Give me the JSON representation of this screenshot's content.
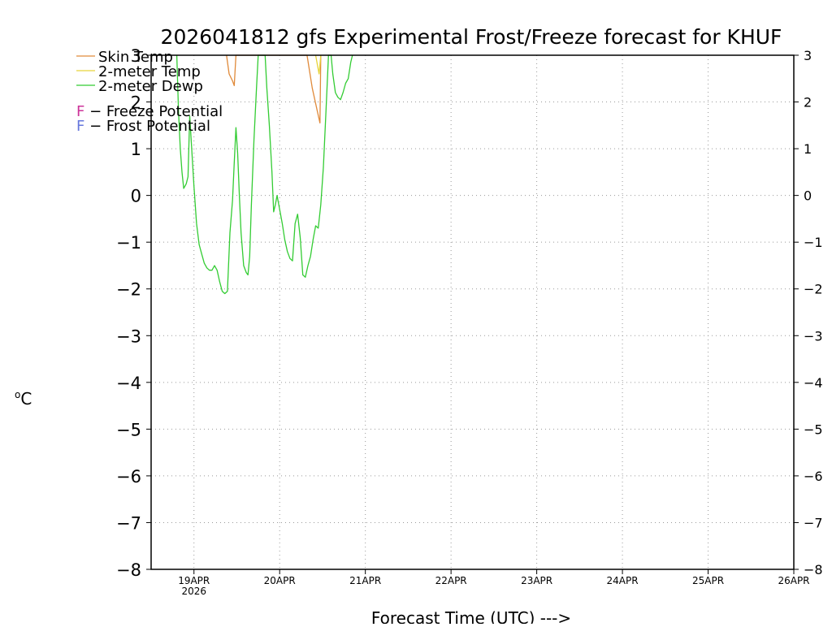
{
  "chart_data": {
    "type": "line",
    "title": "2026041812 gfs Experimental Frost/Freeze forecast for KHUF",
    "xlabel": "Forecast Time (UTC) --->",
    "ylabel": "°C",
    "ylabel_main": "o",
    "ylabel_unit": "C",
    "ylim": [
      -8,
      3
    ],
    "xlim": [
      18.5,
      26.0
    ],
    "y_ticks": [
      3,
      2,
      1,
      0,
      -1,
      -2,
      -3,
      -4,
      -5,
      -6,
      -7,
      -8
    ],
    "y_tick_labels": [
      "3",
      "2",
      "1",
      "0",
      "−1",
      "−2",
      "−3",
      "−4",
      "−5",
      "−6",
      "−7",
      "−8"
    ],
    "x_ticks": [
      {
        "value": 19.0,
        "label": "19APR",
        "sublabel": "2026"
      },
      {
        "value": 20.0,
        "label": "20APR",
        "sublabel": ""
      },
      {
        "value": 21.0,
        "label": "21APR",
        "sublabel": ""
      },
      {
        "value": 22.0,
        "label": "22APR",
        "sublabel": ""
      },
      {
        "value": 23.0,
        "label": "23APR",
        "sublabel": ""
      },
      {
        "value": 24.0,
        "label": "24APR",
        "sublabel": ""
      },
      {
        "value": 25.0,
        "label": "25APR",
        "sublabel": ""
      },
      {
        "value": 26.0,
        "label": "26APR",
        "sublabel": ""
      }
    ],
    "grid": true,
    "legend_position": "top-left",
    "legend": [
      {
        "name": "Skin Temp",
        "color": "#e08a3a"
      },
      {
        "name": "2-meter Temp",
        "color": "#e6d43a"
      },
      {
        "name": "2-meter Dewp",
        "color": "#33cc33"
      }
    ],
    "annotations": [
      {
        "letter": "F",
        "text": " − Freeze Potential",
        "color": "#cc3399"
      },
      {
        "letter": "F",
        "text": " − Frost Potential",
        "color": "#6677dd"
      }
    ],
    "series": [
      {
        "name": "Skin Temp",
        "color": "#e08a3a",
        "points": [
          [
            19.38,
            3.0
          ],
          [
            19.41,
            2.6
          ],
          [
            19.45,
            2.45
          ],
          [
            19.47,
            2.35
          ],
          [
            19.49,
            3.0
          ],
          [
            20.32,
            3.0
          ],
          [
            20.38,
            2.3
          ],
          [
            20.44,
            1.8
          ],
          [
            20.47,
            1.55
          ],
          [
            20.48,
            3.0
          ]
        ]
      },
      {
        "name": "2-meter Temp",
        "color": "#e6d43a",
        "points": [
          [
            20.42,
            3.0
          ],
          [
            20.46,
            2.6
          ],
          [
            20.48,
            3.0
          ]
        ]
      },
      {
        "name": "2-meter Dewp",
        "color": "#33cc33",
        "points": [
          [
            18.8,
            3.0
          ],
          [
            18.82,
            1.8
          ],
          [
            18.84,
            1.0
          ],
          [
            18.86,
            0.5
          ],
          [
            18.88,
            0.15
          ],
          [
            18.91,
            0.25
          ],
          [
            18.93,
            0.4
          ],
          [
            18.95,
            1.7
          ],
          [
            18.97,
            1.1
          ],
          [
            19.0,
            0.2
          ],
          [
            19.03,
            -0.6
          ],
          [
            19.06,
            -1.05
          ],
          [
            19.09,
            -1.25
          ],
          [
            19.12,
            -1.45
          ],
          [
            19.15,
            -1.55
          ],
          [
            19.18,
            -1.6
          ],
          [
            19.21,
            -1.6
          ],
          [
            19.24,
            -1.5
          ],
          [
            19.27,
            -1.6
          ],
          [
            19.3,
            -1.85
          ],
          [
            19.33,
            -2.05
          ],
          [
            19.36,
            -2.1
          ],
          [
            19.39,
            -2.05
          ],
          [
            19.42,
            -0.8
          ],
          [
            19.45,
            -0.1
          ],
          [
            19.47,
            0.7
          ],
          [
            19.49,
            1.45
          ],
          [
            19.51,
            0.9
          ],
          [
            19.53,
            0.0
          ],
          [
            19.55,
            -0.8
          ],
          [
            19.58,
            -1.5
          ],
          [
            19.61,
            -1.65
          ],
          [
            19.63,
            -1.7
          ],
          [
            19.65,
            -1.3
          ],
          [
            19.67,
            -0.2
          ],
          [
            19.7,
            1.2
          ],
          [
            19.73,
            2.3
          ],
          [
            19.75,
            3.0
          ],
          [
            19.83,
            3.0
          ],
          [
            19.85,
            2.3
          ],
          [
            19.88,
            1.5
          ],
          [
            19.91,
            0.5
          ],
          [
            19.93,
            -0.35
          ],
          [
            19.95,
            -0.2
          ],
          [
            19.97,
            0.0
          ],
          [
            20.0,
            -0.3
          ],
          [
            20.03,
            -0.6
          ],
          [
            20.06,
            -0.95
          ],
          [
            20.09,
            -1.2
          ],
          [
            20.12,
            -1.35
          ],
          [
            20.15,
            -1.4
          ],
          [
            20.18,
            -0.6
          ],
          [
            20.21,
            -0.4
          ],
          [
            20.24,
            -0.9
          ],
          [
            20.27,
            -1.7
          ],
          [
            20.3,
            -1.75
          ],
          [
            20.33,
            -1.5
          ],
          [
            20.36,
            -1.3
          ],
          [
            20.39,
            -0.95
          ],
          [
            20.42,
            -0.65
          ],
          [
            20.45,
            -0.7
          ],
          [
            20.48,
            -0.2
          ],
          [
            20.51,
            0.6
          ],
          [
            20.54,
            1.8
          ],
          [
            20.57,
            3.0
          ],
          [
            20.6,
            3.0
          ],
          [
            20.62,
            2.6
          ],
          [
            20.65,
            2.2
          ],
          [
            20.68,
            2.1
          ],
          [
            20.71,
            2.05
          ],
          [
            20.74,
            2.2
          ],
          [
            20.77,
            2.4
          ],
          [
            20.8,
            2.5
          ],
          [
            20.83,
            2.85
          ],
          [
            20.85,
            3.0
          ]
        ]
      }
    ]
  }
}
